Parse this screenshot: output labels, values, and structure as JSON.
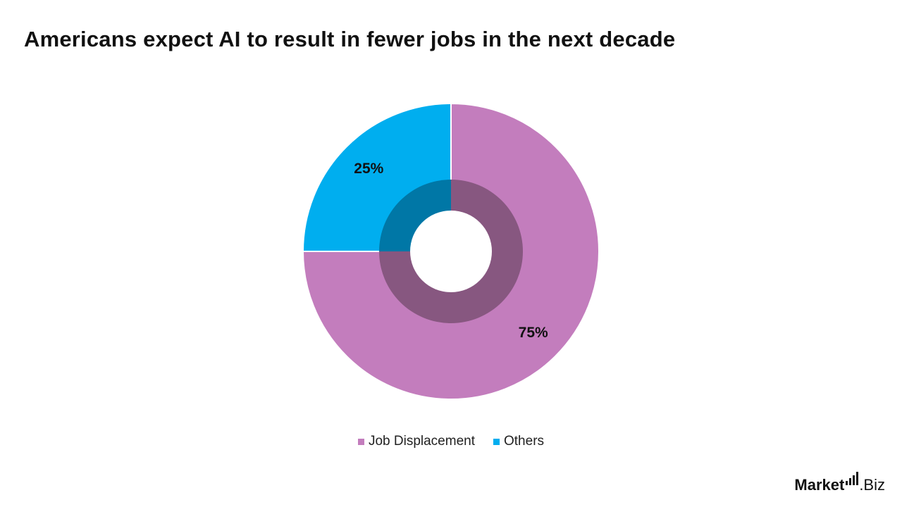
{
  "chart_data": {
    "type": "pie",
    "subtype": "donut",
    "title": "Americans expect AI to result in fewer jobs in the next decade",
    "categories": [
      "Job Displacement",
      "Others"
    ],
    "values": [
      75,
      25
    ],
    "labels": [
      "75%",
      "25%"
    ],
    "colors": [
      "#c37dbd",
      "#00aeef"
    ],
    "inner_ring_colors": [
      "#875780",
      "#0077a6"
    ],
    "legend_position": "bottom"
  },
  "legend": [
    {
      "label": "Job Displacement",
      "color": "#c37dbd"
    },
    {
      "label": "Others",
      "color": "#00aeef"
    }
  ],
  "logo": {
    "text_main": "Market",
    "text_suffix": ".Biz"
  }
}
